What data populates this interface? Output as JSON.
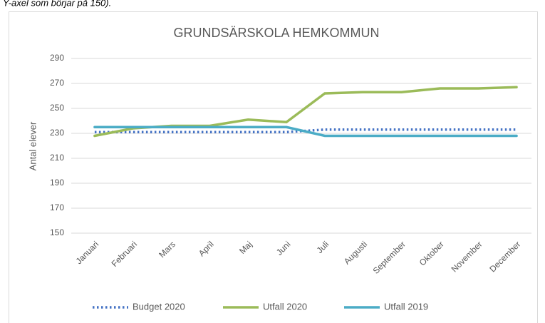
{
  "caption": "Y-axel som börjar på 150).",
  "chart_data": {
    "type": "line",
    "title": "GRUNDSÄRSKOLA HEMKOMMUN",
    "y_label": "Antal elever",
    "categories": [
      "Januari",
      "Februari",
      "Mars",
      "April",
      "Maj",
      "Juni",
      "Juli",
      "Augusti",
      "September",
      "Oktober",
      "November",
      "December"
    ],
    "series": [
      {
        "name": "Budget 2020",
        "color": "#4472c4",
        "dash": "dotted",
        "values": [
          231,
          231,
          231,
          231,
          231,
          231,
          233,
          233,
          233,
          233,
          233,
          233
        ]
      },
      {
        "name": "Utfall 2020",
        "color": "#9bbb59",
        "dash": "solid",
        "values": [
          228,
          234,
          236,
          236,
          241,
          239,
          262,
          263,
          263,
          266,
          266,
          267
        ]
      },
      {
        "name": "Utfall 2019",
        "color": "#4bacc6",
        "dash": "solid",
        "values": [
          235,
          235,
          235,
          235,
          235,
          235,
          228,
          228,
          228,
          228,
          228,
          228
        ]
      }
    ],
    "ylim": [
      150,
      290
    ],
    "yticks": [
      150,
      170,
      190,
      210,
      230,
      250,
      270,
      290
    ],
    "grid": true,
    "legend": "bottom"
  }
}
